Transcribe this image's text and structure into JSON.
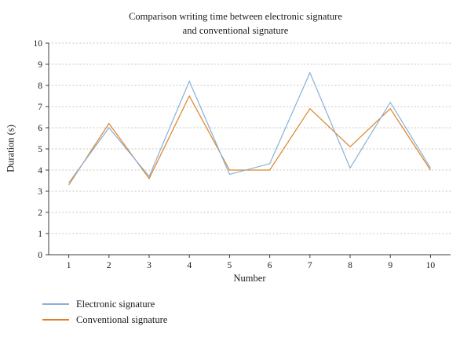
{
  "chart_data": {
    "type": "line",
    "title": "Comparison writing time between electronic signature and conventional signature",
    "xlabel": "Number",
    "ylabel": "Duration (s)",
    "x": [
      1,
      2,
      3,
      4,
      5,
      6,
      7,
      8,
      9,
      10
    ],
    "ylim": [
      0,
      10
    ],
    "yticks": [
      0,
      1,
      2,
      3,
      4,
      5,
      6,
      7,
      8,
      9,
      10
    ],
    "grid": "horizontal-dotted",
    "legend_position": "bottom-left",
    "series": [
      {
        "name": "Electronic signature",
        "color": "#89b0d6",
        "values": [
          3.4,
          6.0,
          3.7,
          8.2,
          3.8,
          4.3,
          8.6,
          4.1,
          7.2,
          4.1
        ]
      },
      {
        "name": "Conventional signature",
        "color": "#dd8327",
        "values": [
          3.3,
          6.2,
          3.6,
          7.5,
          4.0,
          4.0,
          6.9,
          5.1,
          6.9,
          4.0
        ]
      }
    ]
  }
}
